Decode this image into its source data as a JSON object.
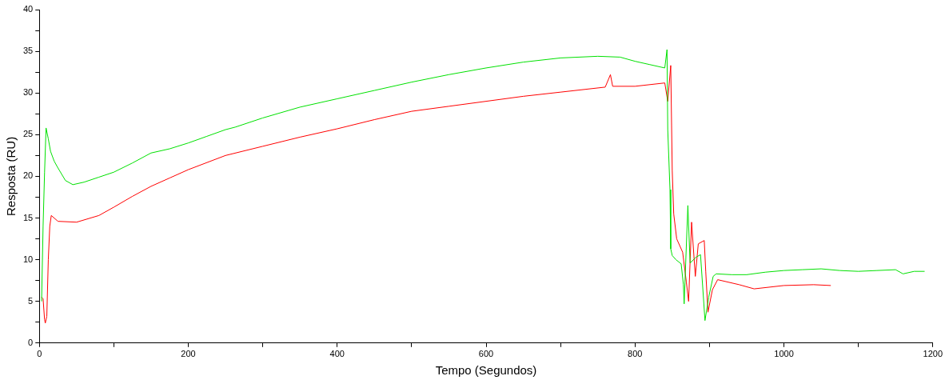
{
  "chart_data": {
    "type": "line",
    "xlabel": "Tempo (Segundos)",
    "ylabel": "Resposta (RU)",
    "xlim": [
      0,
      1200
    ],
    "ylim": [
      0,
      40
    ],
    "xticks": [
      0,
      {
        "value": 100,
        "label": null
      },
      200,
      {
        "value": 300,
        "label": null
      },
      400,
      {
        "value": 500,
        "label": null
      },
      600,
      {
        "value": 700,
        "label": null
      },
      800,
      {
        "value": 900,
        "label": null
      },
      1000,
      {
        "value": 1100,
        "label": null
      },
      1200
    ],
    "yticks": [
      0,
      {
        "value": 2.5,
        "label": null
      },
      5,
      {
        "value": 7.5,
        "label": null
      },
      10,
      {
        "value": 12.5,
        "label": null
      },
      15,
      {
        "value": 17.5,
        "label": null
      },
      20,
      {
        "value": 22.5,
        "label": null
      },
      25,
      {
        "value": 27.5,
        "label": null
      },
      30,
      {
        "value": 32.5,
        "label": null
      },
      35,
      {
        "value": 37.5,
        "label": null
      },
      40
    ],
    "grid": false,
    "legend": false,
    "marker": "none",
    "line_style": "solid",
    "series": [
      {
        "color": "#00e000",
        "x": [
          3,
          5,
          7,
          9,
          12,
          15,
          20,
          25,
          35,
          45,
          60,
          80,
          100,
          125,
          150,
          175,
          200,
          225,
          250,
          263,
          300,
          350,
          400,
          450,
          500,
          550,
          600,
          650,
          700,
          750,
          780,
          800,
          820,
          840,
          843,
          844,
          847,
          848,
          850,
          855,
          862,
          865,
          866,
          871,
          874,
          882,
          888,
          894,
          899,
          905,
          909,
          930,
          950,
          975,
          1000,
          1025,
          1050,
          1075,
          1100,
          1125,
          1150,
          1160,
          1175,
          1189
        ],
        "values": [
          5,
          14,
          20.5,
          25.8,
          24.5,
          23,
          21.8,
          21,
          19.5,
          19,
          19.3,
          19.9,
          20.5,
          21.6,
          22.8,
          23.3,
          24,
          24.8,
          25.6,
          25.9,
          27,
          28.3,
          29.3,
          30.3,
          31.3,
          32.2,
          33,
          33.7,
          34.2,
          34.4,
          34.3,
          33.8,
          33.4,
          33,
          35.2,
          25.6,
          18.4,
          11.3,
          10.5,
          10,
          9.5,
          7,
          4.7,
          16.5,
          9.6,
          10.3,
          10.6,
          2.7,
          5.5,
          8,
          8.3,
          8.2,
          8.2,
          8.5,
          8.7,
          8.8,
          8.9,
          8.7,
          8.6,
          8.7,
          8.8,
          8.3,
          8.6,
          8.6
        ]
      },
      {
        "color": "#ff0000",
        "x": [
          3,
          5,
          7,
          8,
          10,
          12,
          14,
          16,
          25,
          50,
          80,
          100,
          125,
          150,
          175,
          200,
          250,
          300,
          350,
          400,
          450,
          500,
          550,
          600,
          650,
          700,
          760,
          767,
          770,
          800,
          840,
          844,
          848,
          850,
          852,
          856,
          864,
          869,
          872,
          876,
          881,
          885,
          893,
          895,
          898,
          904,
          911,
          940,
          960,
          1000,
          1040,
          1063
        ],
        "values": [
          5.5,
          5.3,
          2.8,
          2.4,
          3.2,
          10,
          14,
          15.3,
          14.6,
          14.5,
          15.3,
          16.3,
          17.6,
          18.8,
          19.8,
          20.8,
          22.5,
          23.6,
          24.7,
          25.7,
          26.8,
          27.8,
          28.4,
          29,
          29.6,
          30.1,
          30.7,
          32.2,
          30.8,
          30.8,
          31.2,
          29,
          33.3,
          20.7,
          15.5,
          12.5,
          10.9,
          7.3,
          5,
          14.5,
          8,
          11.9,
          12.3,
          8.6,
          3.7,
          6.4,
          7.6,
          7,
          6.5,
          6.9,
          7,
          6.9
        ]
      }
    ]
  }
}
